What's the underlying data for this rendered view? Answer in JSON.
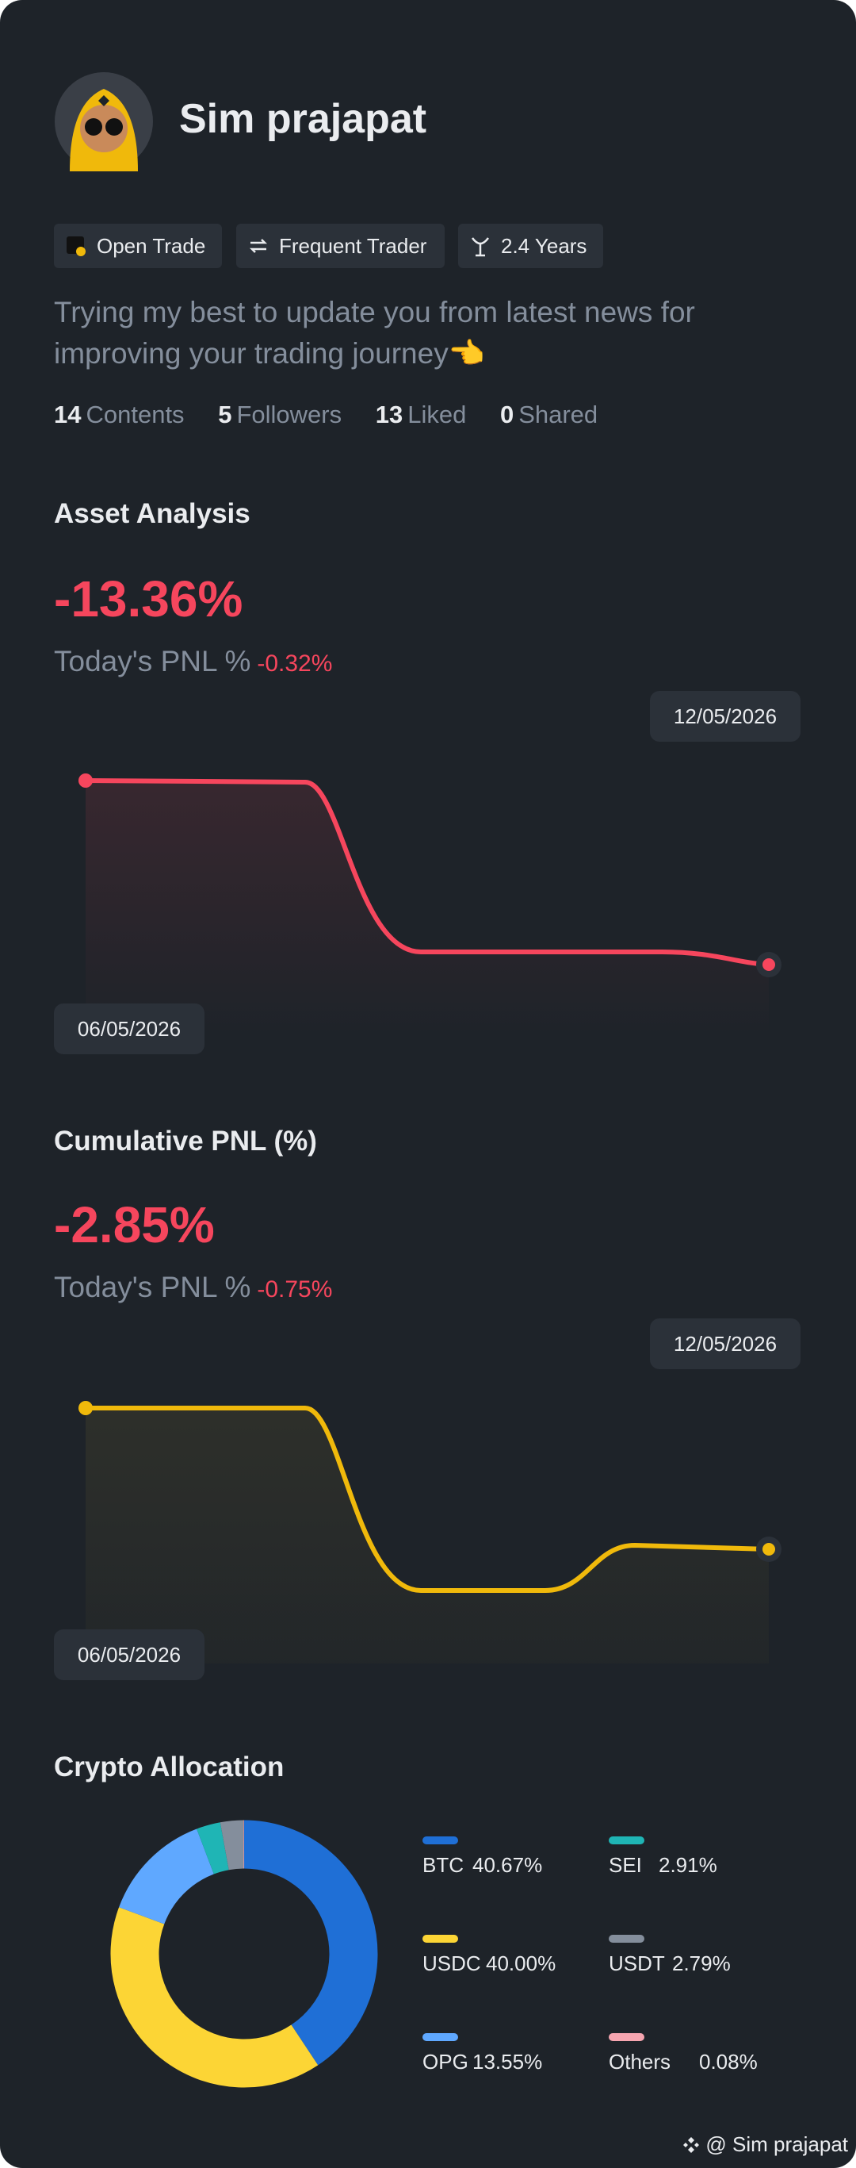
{
  "profile": {
    "name": "Sim prajapat",
    "tags": [
      "Open Trade",
      "Frequent Trader",
      "2.4 Years"
    ],
    "bio": "Trying my best to update you from latest news for improving your trading journey👈",
    "stats": [
      {
        "value": "14",
        "label": "Contents"
      },
      {
        "value": "5",
        "label": "Followers"
      },
      {
        "value": "13",
        "label": "Liked"
      },
      {
        "value": "0",
        "label": "Shared"
      }
    ]
  },
  "asset_analysis": {
    "title": "Asset Analysis",
    "pnl": "-13.36%",
    "today_label": "Today's PNL %",
    "today_value": "-0.32%",
    "start_date": "06/05/2026",
    "end_date": "12/05/2026"
  },
  "cumulative_pnl": {
    "title": "Cumulative PNL (%)",
    "pnl": "-2.85%",
    "today_label": "Today's PNL %",
    "today_value": "-0.75%",
    "start_date": "06/05/2026",
    "end_date": "12/05/2026"
  },
  "allocation": {
    "type": "pie",
    "title": "Crypto Allocation",
    "categories": [
      "BTC",
      "USDC",
      "OPG",
      "SEI",
      "USDT",
      "Others"
    ],
    "values": [
      40.67,
      40.0,
      13.55,
      2.91,
      2.79,
      0.08
    ],
    "value_labels": [
      "40.67%",
      "40.00%",
      "13.55%",
      "2.91%",
      "2.79%",
      "0.08%"
    ],
    "colors": [
      "#1f6fd6",
      "#fcd535",
      "#5fa8ff",
      "#1fb5b5",
      "#848e9c",
      "#f6a5b0"
    ]
  },
  "footer": "@ Sim prajapat"
}
